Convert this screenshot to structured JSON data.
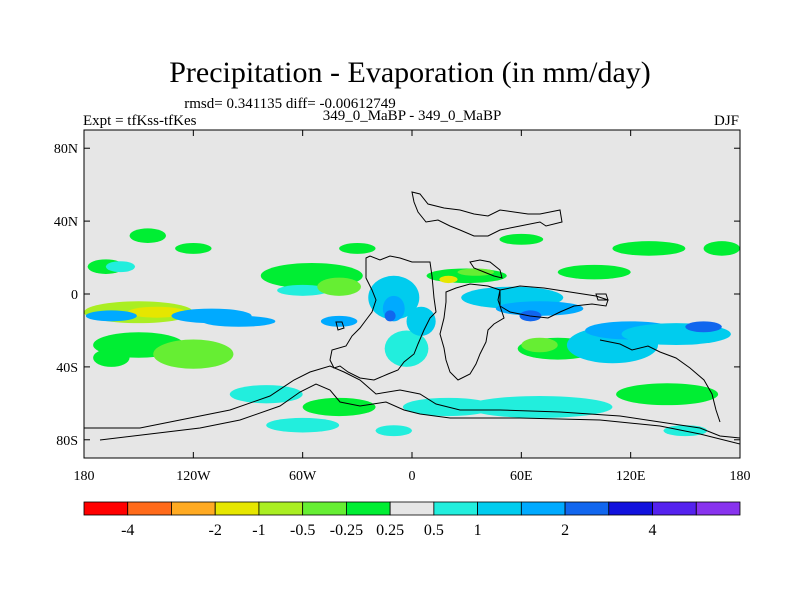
{
  "chart_data": {
    "type": "heatmap",
    "title": "Precipitation - Evaporation (in mm/day)",
    "stats_text": "rmsd= 0.341135 diff= -0.00612749",
    "left_label": "Expt = tfKss-tfKes",
    "center_label": "349_0_MaBP - 349_0_MaBP",
    "right_label": "DJF",
    "x_ticks": [
      {
        "value": -180,
        "label": "180"
      },
      {
        "value": -120,
        "label": "120W"
      },
      {
        "value": -60,
        "label": "60W"
      },
      {
        "value": 0,
        "label": "0"
      },
      {
        "value": 60,
        "label": "60E"
      },
      {
        "value": 120,
        "label": "120E"
      },
      {
        "value": 180,
        "label": "180"
      }
    ],
    "y_ticks": [
      {
        "value": 80,
        "label": "80N"
      },
      {
        "value": 40,
        "label": "40N"
      },
      {
        "value": 0,
        "label": "0"
      },
      {
        "value": -40,
        "label": "40S"
      },
      {
        "value": -80,
        "label": "80S"
      }
    ],
    "xlim": [
      -180,
      180
    ],
    "ylim": [
      -90,
      90
    ],
    "colorbar": {
      "colors": [
        "#ff0000",
        "#ff6a1a",
        "#ffaa22",
        "#e6e600",
        "#aaee22",
        "#66ee33",
        "#00ee33",
        "#e6e6e6",
        "#22eedd",
        "#00ccee",
        "#00aaff",
        "#1166ee",
        "#1111dd",
        "#5522ee",
        "#8833ee"
      ],
      "labels": [
        "-4",
        "-2",
        "-1",
        "-0.5",
        "-0.25",
        "0.25",
        "0.5",
        "1",
        "2",
        "4"
      ],
      "label_after_box": [
        1,
        3,
        4,
        5,
        6,
        7,
        8,
        9,
        11,
        13
      ]
    },
    "blobs": [
      {
        "lon": -150,
        "lat": -10,
        "rx": 30,
        "ry": 6,
        "class": 4
      },
      {
        "lon": -140,
        "lat": -10,
        "rx": 16,
        "ry": 3,
        "class": 3
      },
      {
        "lon": -165,
        "lat": -12,
        "rx": 14,
        "ry": 3,
        "class": 10
      },
      {
        "lon": -110,
        "lat": -12,
        "rx": 22,
        "ry": 4,
        "class": 10
      },
      {
        "lon": -150,
        "lat": -28,
        "rx": 25,
        "ry": 7,
        "class": 6
      },
      {
        "lon": -120,
        "lat": -33,
        "rx": 22,
        "ry": 8,
        "class": 5
      },
      {
        "lon": -165,
        "lat": -35,
        "rx": 10,
        "ry": 5,
        "class": 6
      },
      {
        "lon": -145,
        "lat": 32,
        "rx": 10,
        "ry": 4,
        "class": 6
      },
      {
        "lon": -168,
        "lat": 15,
        "rx": 10,
        "ry": 4,
        "class": 6
      },
      {
        "lon": -160,
        "lat": 15,
        "rx": 8,
        "ry": 3,
        "class": 8
      },
      {
        "lon": -55,
        "lat": 10,
        "rx": 28,
        "ry": 7,
        "class": 6
      },
      {
        "lon": -60,
        "lat": 2,
        "rx": 14,
        "ry": 3,
        "class": 8
      },
      {
        "lon": -95,
        "lat": -15,
        "rx": 20,
        "ry": 3,
        "class": 10
      },
      {
        "lon": -40,
        "lat": -15,
        "rx": 10,
        "ry": 3,
        "class": 10
      },
      {
        "lon": -40,
        "lat": 4,
        "rx": 12,
        "ry": 5,
        "class": 5
      },
      {
        "lon": -10,
        "lat": -2,
        "rx": 14,
        "ry": 12,
        "class": 9
      },
      {
        "lon": -10,
        "lat": -8,
        "rx": 6,
        "ry": 7,
        "class": 10
      },
      {
        "lon": -12,
        "lat": -12,
        "rx": 3,
        "ry": 3,
        "class": 11
      },
      {
        "lon": -3,
        "lat": -30,
        "rx": 12,
        "ry": 10,
        "class": 8
      },
      {
        "lon": 5,
        "lat": -15,
        "rx": 8,
        "ry": 8,
        "class": 9
      },
      {
        "lon": 30,
        "lat": 10,
        "rx": 22,
        "ry": 4,
        "class": 6
      },
      {
        "lon": 35,
        "lat": 12,
        "rx": 10,
        "ry": 2,
        "class": 5
      },
      {
        "lon": 20,
        "lat": 8,
        "rx": 5,
        "ry": 2,
        "class": 3
      },
      {
        "lon": 55,
        "lat": -2,
        "rx": 28,
        "ry": 6,
        "class": 9
      },
      {
        "lon": 70,
        "lat": -8,
        "rx": 24,
        "ry": 4,
        "class": 10
      },
      {
        "lon": 65,
        "lat": -12,
        "rx": 6,
        "ry": 3,
        "class": 11
      },
      {
        "lon": 80,
        "lat": -30,
        "rx": 22,
        "ry": 6,
        "class": 6
      },
      {
        "lon": 70,
        "lat": -28,
        "rx": 10,
        "ry": 4,
        "class": 5
      },
      {
        "lon": 110,
        "lat": -28,
        "rx": 25,
        "ry": 10,
        "class": 9
      },
      {
        "lon": 120,
        "lat": -20,
        "rx": 25,
        "ry": 5,
        "class": 10
      },
      {
        "lon": 145,
        "lat": -22,
        "rx": 30,
        "ry": 6,
        "class": 9
      },
      {
        "lon": 160,
        "lat": -18,
        "rx": 10,
        "ry": 3,
        "class": 11
      },
      {
        "lon": 140,
        "lat": -55,
        "rx": 28,
        "ry": 6,
        "class": 6
      },
      {
        "lon": 70,
        "lat": -62,
        "rx": 40,
        "ry": 6,
        "class": 8
      },
      {
        "lon": 20,
        "lat": -62,
        "rx": 25,
        "ry": 5,
        "class": 8
      },
      {
        "lon": -80,
        "lat": -55,
        "rx": 20,
        "ry": 5,
        "class": 8
      },
      {
        "lon": -40,
        "lat": -62,
        "rx": 20,
        "ry": 5,
        "class": 6
      },
      {
        "lon": -60,
        "lat": -72,
        "rx": 20,
        "ry": 4,
        "class": 8
      },
      {
        "lon": -10,
        "lat": -75,
        "rx": 10,
        "ry": 3,
        "class": 8
      },
      {
        "lon": 100,
        "lat": 12,
        "rx": 20,
        "ry": 4,
        "class": 6
      },
      {
        "lon": 130,
        "lat": 25,
        "rx": 20,
        "ry": 4,
        "class": 6
      },
      {
        "lon": 170,
        "lat": 25,
        "rx": 10,
        "ry": 4,
        "class": 6
      },
      {
        "lon": -120,
        "lat": 25,
        "rx": 10,
        "ry": 3,
        "class": 6
      },
      {
        "lon": -30,
        "lat": 25,
        "rx": 10,
        "ry": 3,
        "class": 6
      },
      {
        "lon": 60,
        "lat": 30,
        "rx": 12,
        "ry": 3,
        "class": 6
      },
      {
        "lon": 150,
        "lat": -75,
        "rx": 12,
        "ry": 3,
        "class": 8
      }
    ]
  }
}
